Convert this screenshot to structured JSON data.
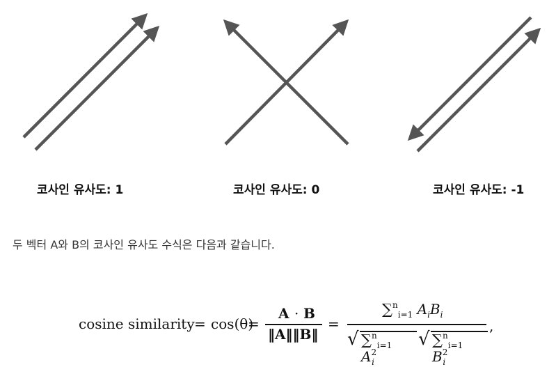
{
  "captions": {
    "left": "코사인 유사도: 1",
    "middle": "코사인 유사도: 0",
    "right": "코사인 유사도: -1"
  },
  "paragraph": "두 벡터 A와 B의 코사인 유사도 수식은 다음과 같습니다.",
  "formula": {
    "lhs": "cosine similarity",
    "equals": "=",
    "cos": "cos(θ)",
    "num1_a": "A",
    "num1_dot": "·",
    "num1_b": "B",
    "den1": "‖A‖‖B‖",
    "sum": "∑",
    "sum_upper": "n",
    "sum_lower": "i=1",
    "num2_a": "A",
    "num2_b": "B",
    "idx": "i",
    "sq": "2",
    "trailing": ","
  },
  "colors": {
    "arrow": "#555555",
    "text": "#111111"
  }
}
